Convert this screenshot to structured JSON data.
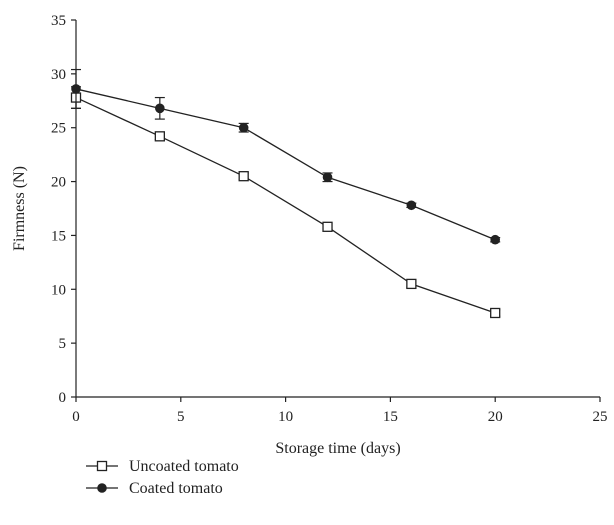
{
  "chart_data": {
    "type": "line",
    "title": "",
    "xlabel": "Storage time (days)",
    "ylabel": "Firmness (N)",
    "xlim": [
      0,
      25
    ],
    "ylim": [
      0,
      35
    ],
    "xticks": [
      0,
      5,
      10,
      15,
      20,
      25
    ],
    "yticks": [
      0,
      5,
      10,
      15,
      20,
      25,
      30,
      35
    ],
    "grid": false,
    "legend_position": "bottom-left",
    "series": [
      {
        "name": "Uncoated tomato",
        "marker": "open-square",
        "color": "#222222",
        "x": [
          0,
          4,
          8,
          12,
          16,
          20
        ],
        "y": [
          27.8,
          24.2,
          20.5,
          15.8,
          10.5,
          7.8
        ],
        "error": [
          1.0,
          0.3,
          0.3,
          0.3,
          0.3,
          0.3
        ]
      },
      {
        "name": "Coated tomato",
        "marker": "filled-circle",
        "color": "#222222",
        "x": [
          0,
          4,
          8,
          12,
          16,
          20
        ],
        "y": [
          28.6,
          26.8,
          25.0,
          20.4,
          17.8,
          14.6
        ],
        "error": [
          1.8,
          1.0,
          0.4,
          0.4,
          0.2,
          0.2
        ]
      }
    ]
  }
}
